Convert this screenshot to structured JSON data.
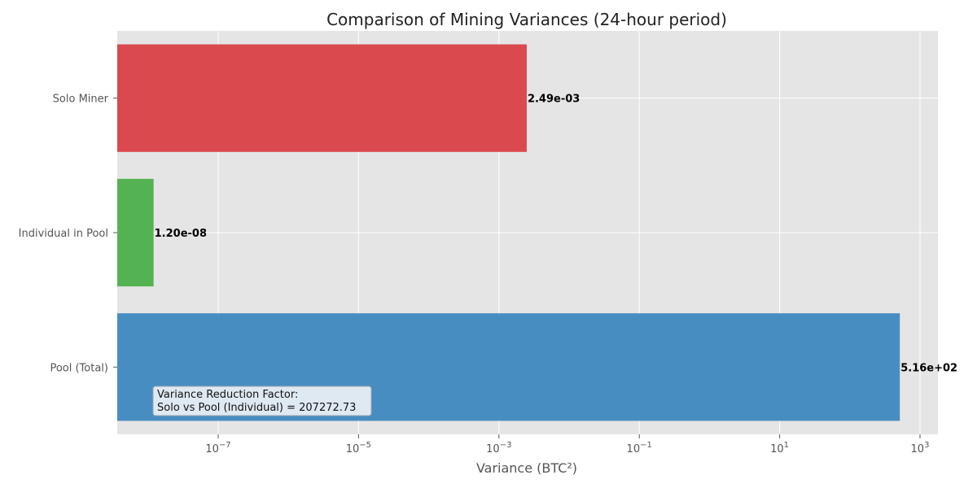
{
  "chart_data": {
    "type": "bar",
    "orientation": "horizontal",
    "title": "Comparison of Mining Variances (24-hour period)",
    "xlabel": "Variance (BTC²)",
    "ylabel": "",
    "xscale": "log",
    "xlim": [
      4e-09,
      1500
    ],
    "grid": true,
    "categories": [
      "Pool (Total)",
      "Individual in Pool",
      "Solo Miner"
    ],
    "values": [
      516,
      1.2e-08,
      0.00249
    ],
    "value_labels": [
      "5.16e+02",
      "1.20e-08",
      "2.49e-03"
    ],
    "colors": [
      "#3f88c0",
      "#4daf4a",
      "#d94045"
    ],
    "x_ticks": [
      {
        "base": "10",
        "exp": "−7",
        "value": 1e-07
      },
      {
        "base": "10",
        "exp": "−5",
        "value": 1e-05
      },
      {
        "base": "10",
        "exp": "−3",
        "value": 0.001
      },
      {
        "base": "10",
        "exp": "−1",
        "value": 0.1
      },
      {
        "base": "10",
        "exp": "1",
        "value": 10
      },
      {
        "base": "10",
        "exp": "3",
        "value": 1000
      }
    ],
    "annotation": {
      "lines": [
        "Variance Reduction Factor:",
        "Solo vs Pool (Individual) = 207272.73"
      ]
    }
  }
}
